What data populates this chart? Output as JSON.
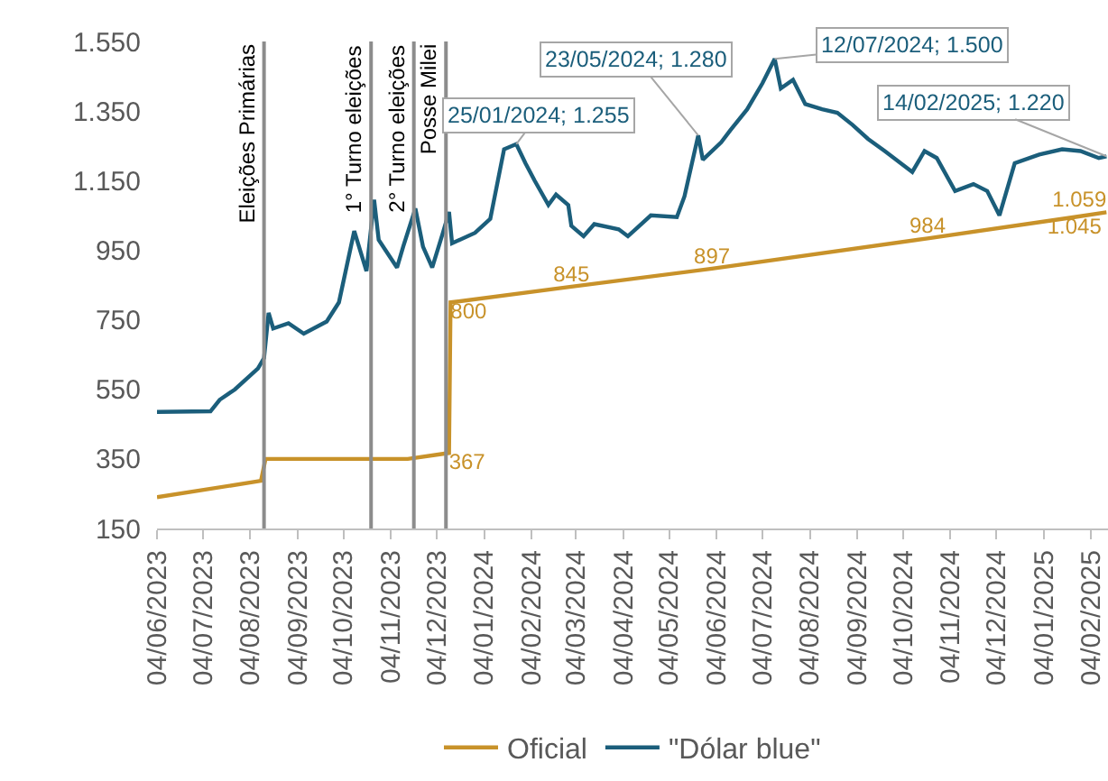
{
  "chart_data": {
    "type": "line",
    "series": [
      {
        "name": "Oficial",
        "color": "#c8922a",
        "x": [
          "2023-06-04",
          "2023-08-11",
          "2023-08-14",
          "2023-11-15",
          "2023-12-12",
          "2023-12-13",
          "2024-03-01",
          "2024-06-01",
          "2024-10-20",
          "2025-01-24",
          "2025-02-14"
        ],
        "values": [
          240,
          287,
          350,
          350,
          367,
          800,
          845,
          897,
          984,
          1045,
          1059
        ],
        "value_labels": [
          null,
          null,
          null,
          null,
          "367",
          "800",
          "845",
          "897",
          "984",
          "1.045",
          "1.059"
        ]
      },
      {
        "name": "\"Dólar blue\"",
        "color": "#1b5e7b",
        "x": [
          "2023-06-04",
          "2023-07-09",
          "2023-07-15",
          "2023-07-25",
          "2023-08-09",
          "2023-08-13",
          "2023-08-16",
          "2023-08-19",
          "2023-08-29",
          "2023-09-08",
          "2023-09-23",
          "2023-10-01",
          "2023-10-11",
          "2023-10-19",
          "2023-10-24",
          "2023-10-27",
          "2023-11-08",
          "2023-11-12",
          "2023-11-20",
          "2023-11-25",
          "2023-12-01",
          "2023-12-08",
          "2023-12-12",
          "2023-12-14",
          "2023-12-29",
          "2024-01-08",
          "2024-01-17",
          "2024-01-25",
          "2024-01-31",
          "2024-02-06",
          "2024-02-15",
          "2024-02-20",
          "2024-02-28",
          "2024-03-01",
          "2024-03-09",
          "2024-03-16",
          "2024-04-01",
          "2024-04-07",
          "2024-04-22",
          "2024-05-09",
          "2024-05-14",
          "2024-05-23",
          "2024-05-26",
          "2024-06-07",
          "2024-06-13",
          "2024-06-24",
          "2024-07-04",
          "2024-07-12",
          "2024-07-16",
          "2024-07-24",
          "2024-08-01",
          "2024-08-12",
          "2024-08-22",
          "2024-09-01",
          "2024-09-11",
          "2024-09-22",
          "2024-10-10",
          "2024-10-18",
          "2024-10-26",
          "2024-11-07",
          "2024-11-19",
          "2024-11-28",
          "2024-12-06",
          "2024-12-16",
          "2025-01-01",
          "2025-01-16",
          "2025-01-28",
          "2025-02-09",
          "2025-02-14"
        ],
        "values": [
          485,
          487,
          520,
          550,
          610,
          640,
          770,
          725,
          740,
          710,
          745,
          800,
          1005,
          890,
          1095,
          980,
          900,
          960,
          1070,
          960,
          900,
          1000,
          1060,
          970,
          1000,
          1040,
          1240,
          1255,
          1200,
          1150,
          1080,
          1110,
          1080,
          1020,
          990,
          1025,
          1010,
          990,
          1050,
          1045,
          1105,
          1280,
          1210,
          1260,
          1295,
          1355,
          1430,
          1500,
          1415,
          1440,
          1370,
          1355,
          1345,
          1310,
          1270,
          1235,
          1175,
          1235,
          1215,
          1120,
          1140,
          1120,
          1050,
          1200,
          1225,
          1240,
          1235,
          1215,
          1220
        ]
      }
    ],
    "xlim": [
      "2023-06-04",
      "2025-02-15"
    ],
    "xticks": [
      {
        "value": "2023-06-04",
        "label": "04/06/2023"
      },
      {
        "value": "2023-07-04",
        "label": "04/07/2023"
      },
      {
        "value": "2023-08-04",
        "label": "04/08/2023"
      },
      {
        "value": "2023-09-04",
        "label": "04/09/2023"
      },
      {
        "value": "2023-10-04",
        "label": "04/10/2023"
      },
      {
        "value": "2023-11-04",
        "label": "04/11/2023"
      },
      {
        "value": "2023-12-04",
        "label": "04/12/2023"
      },
      {
        "value": "2024-01-04",
        "label": "04/01/2024"
      },
      {
        "value": "2024-02-04",
        "label": "04/02/2024"
      },
      {
        "value": "2024-03-04",
        "label": "04/03/2024"
      },
      {
        "value": "2024-04-04",
        "label": "04/04/2024"
      },
      {
        "value": "2024-05-04",
        "label": "04/05/2024"
      },
      {
        "value": "2024-06-04",
        "label": "04/06/2024"
      },
      {
        "value": "2024-07-04",
        "label": "04/07/2024"
      },
      {
        "value": "2024-08-04",
        "label": "04/08/2024"
      },
      {
        "value": "2024-09-04",
        "label": "04/09/2024"
      },
      {
        "value": "2024-10-04",
        "label": "04/10/2024"
      },
      {
        "value": "2024-11-04",
        "label": "04/11/2024"
      },
      {
        "value": "2024-12-04",
        "label": "04/12/2024"
      },
      {
        "value": "2025-01-04",
        "label": "04/01/2025"
      },
      {
        "value": "2025-02-04",
        "label": "04/02/2025"
      }
    ],
    "ylim": [
      150,
      1550
    ],
    "yticks": [
      {
        "value": 150,
        "label": "150"
      },
      {
        "value": 350,
        "label": "350"
      },
      {
        "value": 550,
        "label": "550"
      },
      {
        "value": 750,
        "label": "750"
      },
      {
        "value": 950,
        "label": "950"
      },
      {
        "value": 1150,
        "label": "1.150"
      },
      {
        "value": 1350,
        "label": "1.350"
      },
      {
        "value": 1550,
        "label": "1.550"
      }
    ],
    "ref_lines": [
      {
        "axis": "x",
        "value": "2023-08-13",
        "label": "Eleições Primárias",
        "color": "#8c8c8c"
      },
      {
        "axis": "x",
        "value": "2023-10-22",
        "label": "1° Turno eleições",
        "color": "#8c8c8c"
      },
      {
        "axis": "x",
        "value": "2023-11-19",
        "label": "2° Turno eleições",
        "color": "#8c8c8c"
      },
      {
        "axis": "x",
        "value": "2023-12-10",
        "label": "Posse Milei",
        "color": "#8c8c8c"
      }
    ],
    "annotations": [
      {
        "text": "25/01/2024; 1.255",
        "x": "2024-01-25",
        "y": 1255
      },
      {
        "text": "23/05/2024; 1.280",
        "x": "2024-05-23",
        "y": 1280
      },
      {
        "text": "12/07/2024; 1.500",
        "x": "2024-07-12",
        "y": 1500
      },
      {
        "text": "14/02/2025; 1.220",
        "x": "2025-02-14",
        "y": 1220
      }
    ],
    "legend": "bottom",
    "grid": false,
    "marker": "none",
    "line_style": "solid"
  }
}
